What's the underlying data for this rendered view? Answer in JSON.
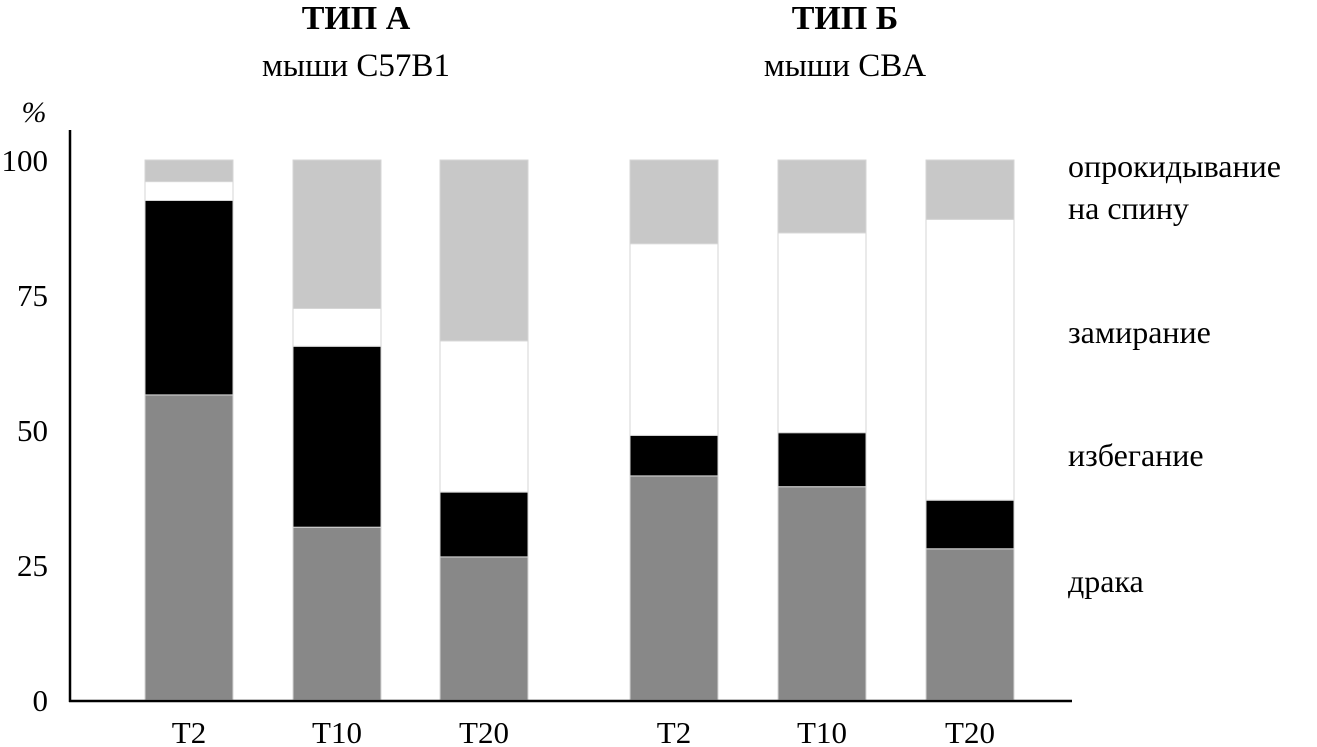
{
  "chart_data": {
    "type": "bar",
    "stacked": true,
    "ylabel": "%",
    "ylim": [
      0,
      100
    ],
    "yticks": [
      "0",
      "25",
      "50",
      "75",
      "100"
    ],
    "groups": [
      {
        "title": "ТИП А",
        "subtitle": "мыши C57B1",
        "categories": [
          "T2",
          "T10",
          "T20"
        ],
        "stacks": [
          {
            "драка": 56.5,
            "избегание": 36,
            "замирание": 3.5,
            "опрокидывание на спину": 4
          },
          {
            "драка": 32,
            "избегание": 33.5,
            "замирание": 7,
            "опрокидывание на спину": 27.5
          },
          {
            "драка": 26.5,
            "избегание": 12,
            "замирание": 28,
            "опрокидывание на спину": 33.5
          }
        ]
      },
      {
        "title": "ТИП Б",
        "subtitle": "мыши CBA",
        "categories": [
          "T2",
          "T10",
          "T20"
        ],
        "stacks": [
          {
            "драка": 41.5,
            "избегание": 7.5,
            "замирание": 35.5,
            "опрокидывание на спину": 15.5
          },
          {
            "драка": 39.5,
            "избегание": 10,
            "замирание": 37,
            "опрокидывание на спину": 13.5
          },
          {
            "драка": 28,
            "избегание": 9,
            "замирание": 52,
            "опрокидывание на спину": 11
          }
        ]
      }
    ],
    "series": [
      {
        "name": "драка",
        "color": "#888888"
      },
      {
        "name": "избегание",
        "color": "#000000"
      },
      {
        "name": "замирание",
        "color": "#ffffff"
      },
      {
        "name": "опрокидывание на спину",
        "color": "#c8c8c8"
      }
    ],
    "legend": {
      "position": "right",
      "labels": [
        "опрокидывание",
        "на спину",
        "замирание",
        "избегание",
        "драка"
      ]
    }
  }
}
